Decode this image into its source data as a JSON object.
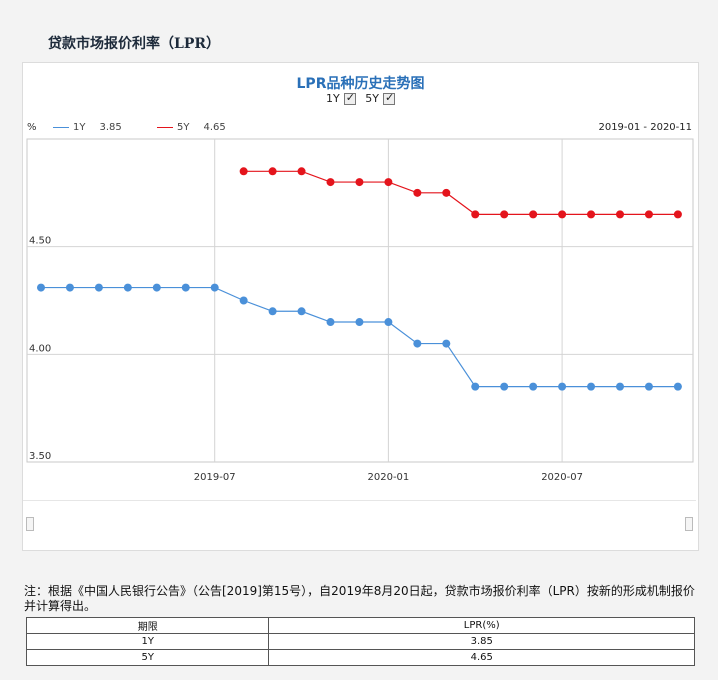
{
  "page": {
    "title": "贷款市场报价利率（LPR）"
  },
  "chart_data": {
    "type": "line",
    "title": "LPR品种历史走势图",
    "unit": "%",
    "date_range": "2019-01 - 2020-11",
    "toggles": [
      {
        "label": "1Y",
        "checked": true
      },
      {
        "label": "5Y",
        "checked": true
      }
    ],
    "x": [
      "2019-01",
      "2019-02",
      "2019-03",
      "2019-04",
      "2019-05",
      "2019-06",
      "2019-07",
      "2019-08",
      "2019-09",
      "2019-10",
      "2019-11",
      "2019-12",
      "2020-01",
      "2020-02",
      "2020-03",
      "2020-04",
      "2020-05",
      "2020-06",
      "2020-07",
      "2020-08",
      "2020-09",
      "2020-10",
      "2020-11"
    ],
    "x_ticks": [
      "2019-07",
      "2020-01",
      "2020-07"
    ],
    "y_ticks": [
      "4.50",
      "4.00",
      "3.50"
    ],
    "ylim": [
      3.5,
      5.0
    ],
    "series": [
      {
        "name": "1Y",
        "legend_value": "3.85",
        "color": "#4a90d9",
        "x": [
          "2019-01",
          "2019-02",
          "2019-03",
          "2019-04",
          "2019-05",
          "2019-06",
          "2019-07",
          "2019-08",
          "2019-09",
          "2019-10",
          "2019-11",
          "2019-12",
          "2020-01",
          "2020-02",
          "2020-03",
          "2020-04",
          "2020-05",
          "2020-06",
          "2020-07",
          "2020-08",
          "2020-09",
          "2020-10",
          "2020-11"
        ],
        "values": [
          4.31,
          4.31,
          4.31,
          4.31,
          4.31,
          4.31,
          4.31,
          4.25,
          4.2,
          4.2,
          4.15,
          4.15,
          4.15,
          4.05,
          4.05,
          3.85,
          3.85,
          3.85,
          3.85,
          3.85,
          3.85,
          3.85,
          3.85
        ]
      },
      {
        "name": "5Y",
        "legend_value": "4.65",
        "color": "#e4141c",
        "x": [
          "2019-08",
          "2019-09",
          "2019-10",
          "2019-11",
          "2019-12",
          "2020-01",
          "2020-02",
          "2020-03",
          "2020-04",
          "2020-05",
          "2020-06",
          "2020-07",
          "2020-08",
          "2020-09",
          "2020-10",
          "2020-11"
        ],
        "values": [
          4.85,
          4.85,
          4.85,
          4.8,
          4.8,
          4.8,
          4.75,
          4.75,
          4.65,
          4.65,
          4.65,
          4.65,
          4.65,
          4.65,
          4.65,
          4.65
        ]
      }
    ],
    "grid": true
  },
  "note": "注：根据《中国人民银行公告》（公告[2019]第15号），自2019年8月20日起，贷款市场报价利率（LPR）按新的形成机制报价并计算得出。",
  "table": {
    "headers": [
      "期限",
      "LPR(%)"
    ],
    "rows": [
      [
        "1Y",
        "3.85"
      ],
      [
        "5Y",
        "4.65"
      ]
    ]
  }
}
